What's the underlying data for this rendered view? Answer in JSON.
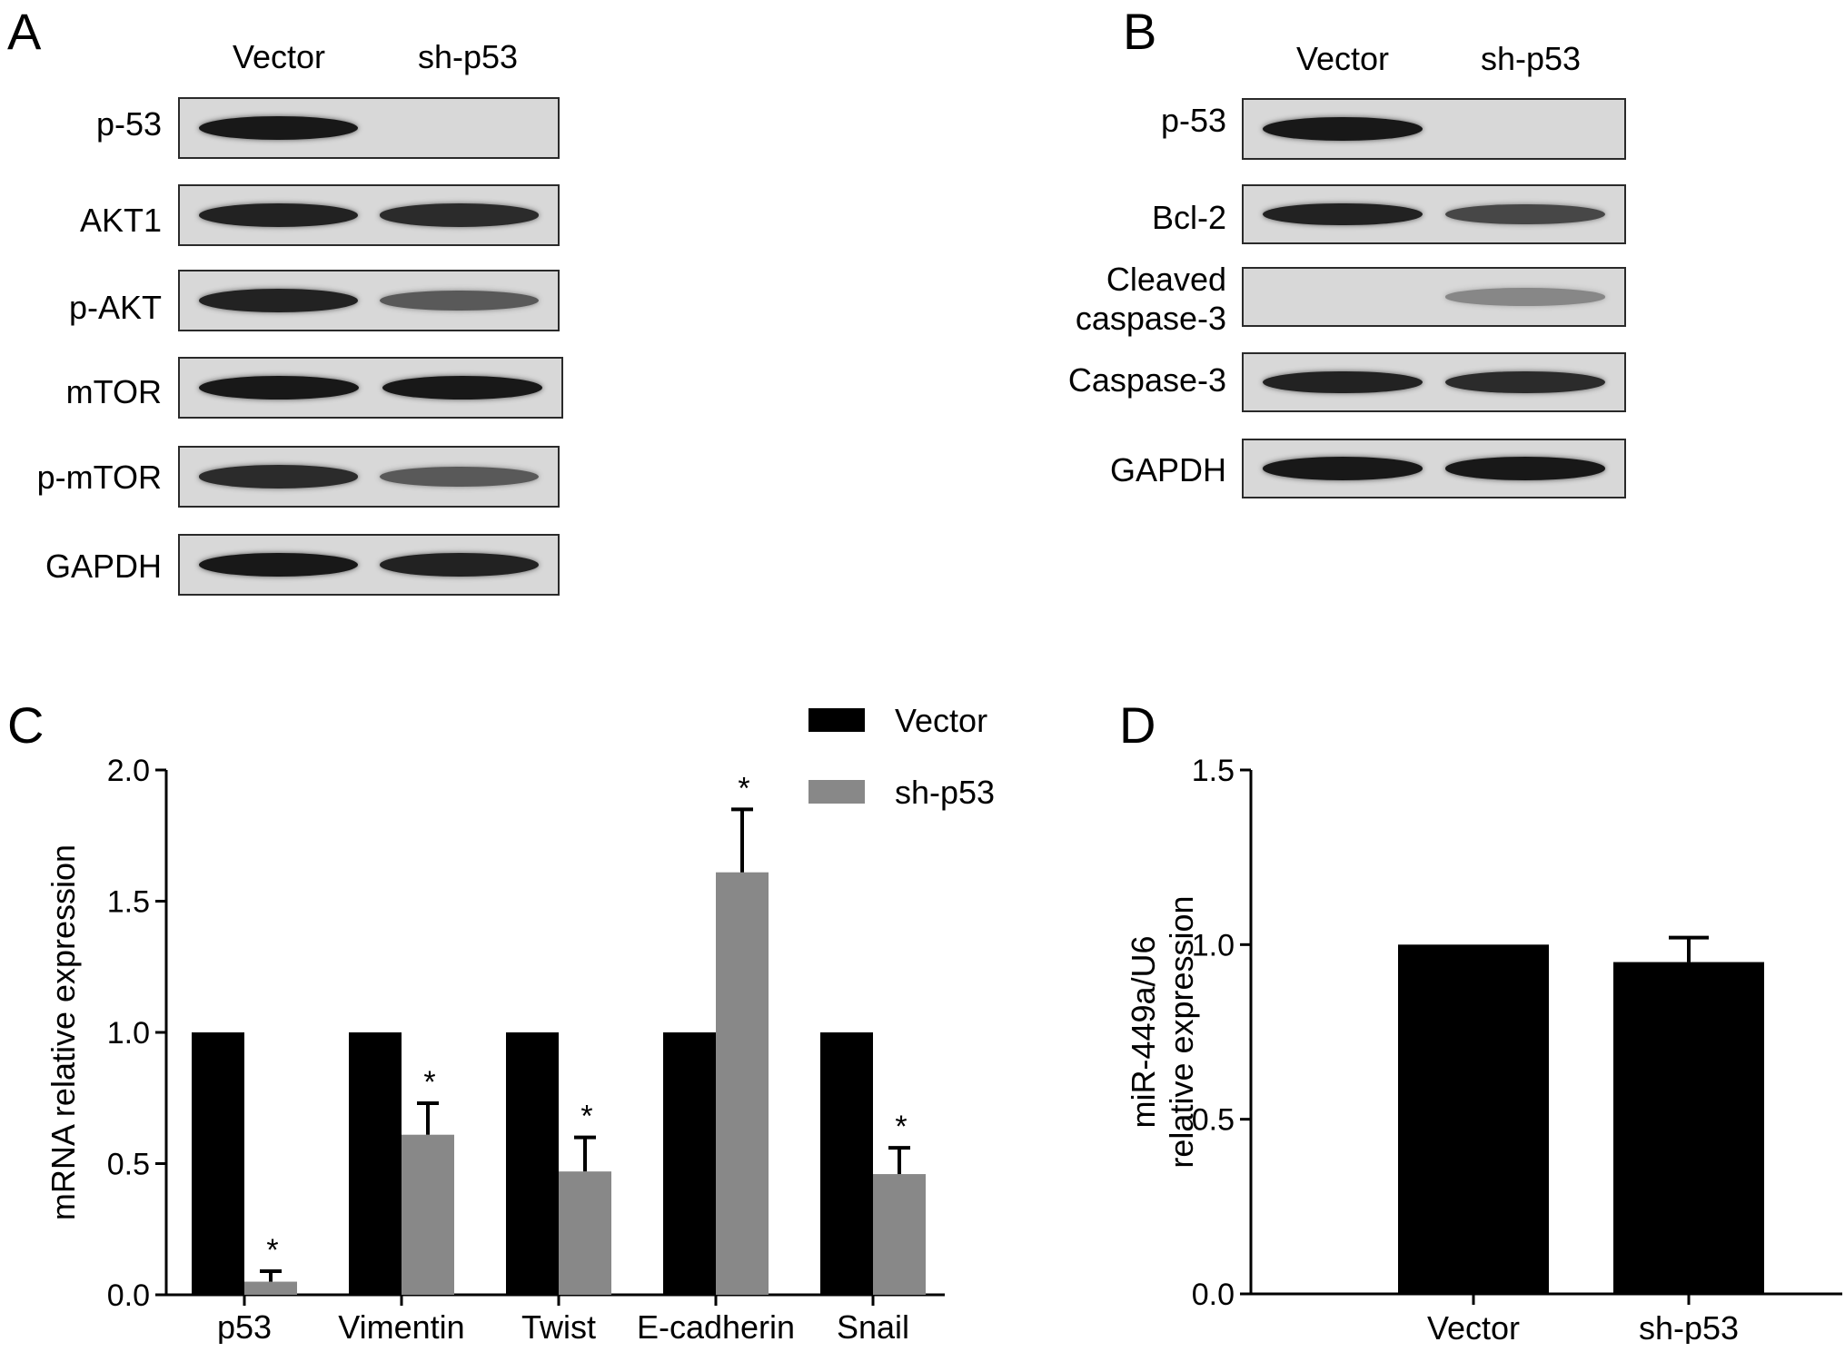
{
  "panels": {
    "A": {
      "letter": "A",
      "lanes": [
        "Vector",
        "sh-p53"
      ],
      "rows": [
        {
          "label": "p-53",
          "bands": [
            0.95,
            0.0
          ]
        },
        {
          "label": "AKT1",
          "bands": [
            0.9,
            0.85
          ]
        },
        {
          "label": "p-AKT",
          "bands": [
            0.9,
            0.6
          ]
        },
        {
          "label": "mTOR",
          "bands": [
            0.95,
            0.95
          ]
        },
        {
          "label": "p-mTOR",
          "bands": [
            0.85,
            0.6
          ]
        },
        {
          "label": "GAPDH",
          "bands": [
            0.95,
            0.9
          ]
        }
      ]
    },
    "B": {
      "letter": "B",
      "lanes": [
        "Vector",
        "sh-p53"
      ],
      "rows": [
        {
          "label": "p-53",
          "bands": [
            0.95,
            0.0
          ]
        },
        {
          "label": "Bcl-2",
          "bands": [
            0.9,
            0.7
          ]
        },
        {
          "label": "Cleaved caspase-3",
          "line1": "Cleaved",
          "line2": "caspase-3",
          "bands": [
            0.0,
            0.35
          ]
        },
        {
          "label": "Caspase-3",
          "bands": [
            0.9,
            0.85
          ]
        },
        {
          "label": "GAPDH",
          "bands": [
            0.95,
            0.95
          ]
        }
      ]
    },
    "C": {
      "letter": "C"
    },
    "D": {
      "letter": "D"
    }
  },
  "chart_data": [
    {
      "type": "bar",
      "panel": "C",
      "categories": [
        "p53",
        "Vimentin",
        "Twist",
        "E-cadherin",
        "Snail"
      ],
      "series": [
        {
          "name": "Vector",
          "values": [
            1.0,
            1.0,
            1.0,
            1.0,
            1.0
          ],
          "errors": [
            0,
            0,
            0,
            0,
            0
          ],
          "color": "#000000"
        },
        {
          "name": "sh-p53",
          "values": [
            0.05,
            0.61,
            0.47,
            1.61,
            0.46
          ],
          "errors": [
            0.04,
            0.12,
            0.13,
            0.24,
            0.1
          ],
          "color": "#888888"
        }
      ],
      "significance": [
        "*",
        "*",
        "*",
        "*",
        "*"
      ],
      "ylabel": "mRNA relative expression",
      "xlabel": "",
      "ylim": [
        0,
        2.0
      ],
      "yticks": [
        "0.0",
        "0.5",
        "1.0",
        "1.5",
        "2.0"
      ],
      "legend_position": "top-right"
    },
    {
      "type": "bar",
      "panel": "D",
      "categories": [
        "Vector",
        "sh-p53"
      ],
      "series": [
        {
          "values": [
            1.0,
            0.95
          ],
          "errors": [
            0,
            0.07
          ],
          "color": "#000000"
        }
      ],
      "ylabel_line1": "miR-449a/U6",
      "ylabel_line2": "relative expression",
      "xlabel": "",
      "ylim": [
        0,
        1.5
      ],
      "yticks": [
        "0.0",
        "0.5",
        "1.0",
        "1.5"
      ]
    }
  ]
}
